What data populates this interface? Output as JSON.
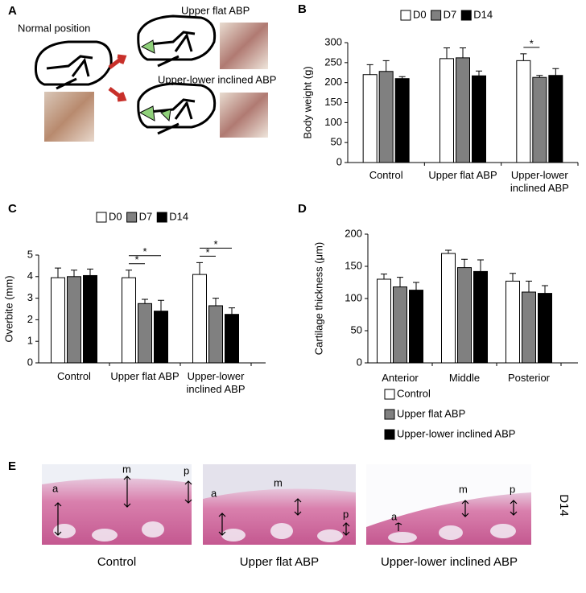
{
  "panel_labels": [
    "A",
    "B",
    "C",
    "D",
    "E"
  ],
  "panel_a": {
    "labels": [
      "Normal position",
      "Upper flat ABP",
      "Upper-lower inclined ABP"
    ]
  },
  "chart_data": [
    {
      "type": "bar",
      "y_label": "Body weight (g)",
      "categories": [
        "Control",
        "Upper flat ABP",
        "Upper-lower inclined ABP"
      ],
      "series": [
        {
          "name": "D0",
          "color": "#ffffff",
          "values": [
            220,
            260,
            255
          ],
          "errors": [
            25,
            27,
            17
          ]
        },
        {
          "name": "D7",
          "color": "#808080",
          "values": [
            228,
            262,
            213
          ],
          "errors": [
            27,
            25,
            5
          ]
        },
        {
          "name": "D14",
          "color": "#000000",
          "values": [
            210,
            217,
            218
          ],
          "errors": [
            5,
            12,
            17
          ]
        }
      ],
      "ylim": [
        0,
        300
      ],
      "yticks": [
        0,
        50,
        100,
        150,
        200,
        250,
        300
      ],
      "legend": "top",
      "annotations": [
        {
          "text": "*",
          "category": 2,
          "series": [
            0,
            1
          ]
        }
      ]
    },
    {
      "type": "bar",
      "y_label": "Overbite (mm)",
      "categories": [
        "Control",
        "Upper flat ABP",
        "Upper-lower inclined ABP"
      ],
      "series": [
        {
          "name": "D0",
          "color": "#ffffff",
          "values": [
            3.95,
            3.95,
            4.1
          ],
          "errors": [
            0.45,
            0.35,
            0.55
          ]
        },
        {
          "name": "D7",
          "color": "#808080",
          "values": [
            4.0,
            2.75,
            2.65
          ],
          "errors": [
            0.3,
            0.2,
            0.35
          ]
        },
        {
          "name": "D14",
          "color": "#000000",
          "values": [
            4.05,
            2.4,
            2.25
          ],
          "errors": [
            0.3,
            0.5,
            0.3
          ]
        }
      ],
      "ylim": [
        0,
        5
      ],
      "yticks": [
        0,
        1,
        2,
        3,
        4,
        5
      ],
      "legend": "top",
      "annotations": [
        {
          "text": "*",
          "category": 1,
          "series": [
            0,
            1
          ]
        },
        {
          "text": "*",
          "category": 1,
          "series": [
            0,
            2
          ]
        },
        {
          "text": "*",
          "category": 2,
          "series": [
            0,
            1
          ]
        },
        {
          "text": "*",
          "category": 2,
          "series": [
            0,
            2
          ]
        }
      ]
    },
    {
      "type": "bar",
      "y_label": "Cartilage thickness (μm)",
      "categories": [
        "Anterior",
        "Middle",
        "Posterior"
      ],
      "series": [
        {
          "name": "Control",
          "color": "#ffffff",
          "values": [
            130,
            170,
            127
          ],
          "errors": [
            8,
            5,
            12
          ]
        },
        {
          "name": "Upper flat ABP",
          "color": "#808080",
          "values": [
            118,
            148,
            110
          ],
          "errors": [
            15,
            13,
            17
          ]
        },
        {
          "name": "Upper-lower inclined ABP",
          "color": "#000000",
          "values": [
            113,
            142,
            108
          ],
          "errors": [
            12,
            18,
            12
          ]
        }
      ],
      "ylim": [
        0,
        200
      ],
      "yticks": [
        0,
        50,
        100,
        150,
        200
      ],
      "legend": "bottom",
      "annotations": []
    }
  ],
  "panel_e": {
    "markers": [
      [
        "a",
        "m",
        "p"
      ],
      [
        "a",
        "m",
        "p"
      ],
      [
        "a",
        "m",
        "p"
      ]
    ],
    "captions": [
      "Control",
      "Upper flat ABP",
      "Upper-lower inclined ABP"
    ],
    "timepoint": "D14"
  }
}
